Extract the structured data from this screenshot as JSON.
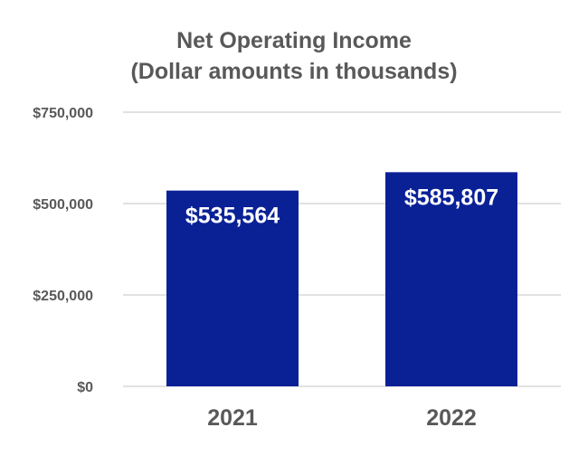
{
  "chart_data": {
    "type": "bar",
    "title": "Net Operating Income",
    "subtitle": "(Dollar amounts in thousands)",
    "categories": [
      "2021",
      "2022"
    ],
    "values": [
      535564,
      585807
    ],
    "data_labels": [
      "$535,564",
      "$585,807"
    ],
    "xlabel": "",
    "ylabel": "",
    "ylim": [
      0,
      750000
    ],
    "yticks": [
      0,
      250000,
      500000,
      750000
    ],
    "ytick_labels": [
      "$0",
      "$250,000",
      "$500,000",
      "$750,000"
    ],
    "grid": true,
    "legend": "none",
    "colors": {
      "bar": "#0a2196",
      "grid": "#d9d9d9",
      "text": "#595959",
      "data_label": "#ffffff"
    }
  }
}
